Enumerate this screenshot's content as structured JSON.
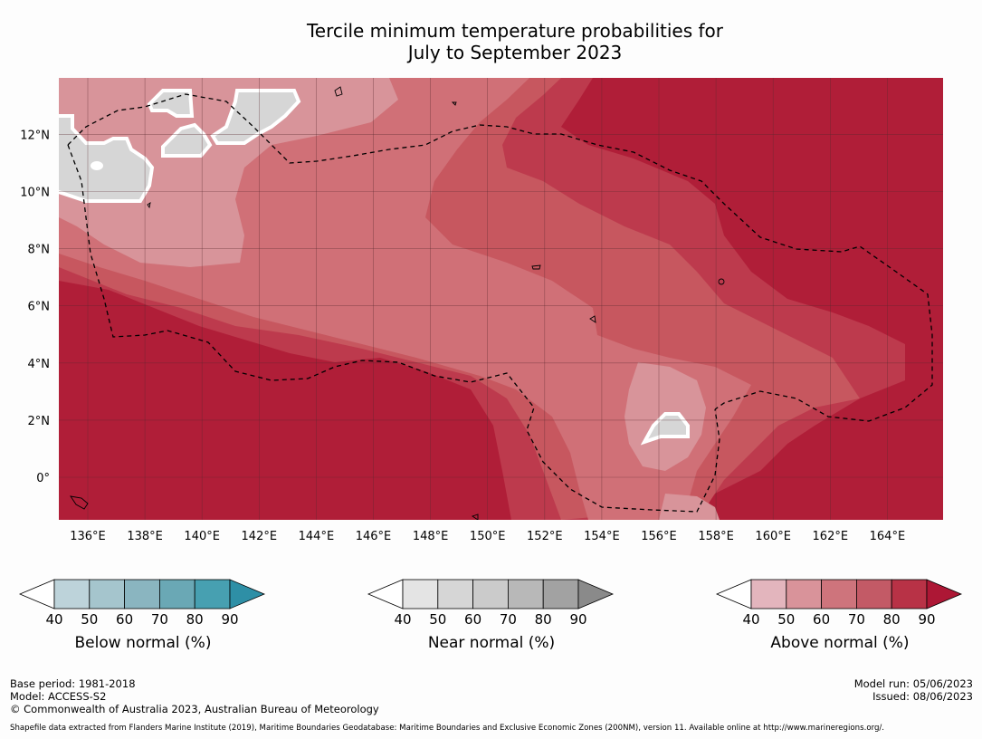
{
  "title": {
    "line1": "Tercile minimum temperature probabilities for",
    "line2": "July to September 2023"
  },
  "map": {
    "lon_labels": [
      "136°E",
      "138°E",
      "140°E",
      "142°E",
      "144°E",
      "146°E",
      "148°E",
      "150°E",
      "152°E",
      "154°E",
      "156°E",
      "158°E",
      "160°E",
      "162°E",
      "164°E"
    ],
    "lat_labels": [
      "12°N",
      "10°N",
      "8°N",
      "6°N",
      "4°N",
      "2°N",
      "0°"
    ],
    "colors": {
      "above_90": "#b01e38",
      "above_80": "#bd3a4d",
      "above_70": "#c7575f",
      "above_60": "#d07077",
      "above_50": "#d8949a",
      "near": "#d6d6d6",
      "grid": "#5a2a30"
    }
  },
  "colorbars": [
    {
      "name": "below",
      "label": "Below normal (%)",
      "ticks": [
        "40",
        "50",
        "60",
        "70",
        "80",
        "90"
      ],
      "colors": [
        "#ffffff",
        "#bdd3da",
        "#a5c5cd",
        "#8ab5c0",
        "#6aa8b5",
        "#47a0b1",
        "#2e8fa6"
      ]
    },
    {
      "name": "near",
      "label": "Near normal (%)",
      "ticks": [
        "40",
        "50",
        "60",
        "70",
        "80",
        "90"
      ],
      "colors": [
        "#ffffff",
        "#e4e4e4",
        "#d6d6d6",
        "#cbcbcb",
        "#b8b8b8",
        "#a2a2a2",
        "#8a8a8a"
      ]
    },
    {
      "name": "above",
      "label": "Above normal (%)",
      "ticks": [
        "40",
        "50",
        "60",
        "70",
        "80",
        "90"
      ],
      "colors": [
        "#ffffff",
        "#e3b5bd",
        "#d9939a",
        "#ce747c",
        "#c35a66",
        "#b83246",
        "#ad1735"
      ]
    }
  ],
  "footer": {
    "base_period": "Base period: 1981-2018",
    "model": "Model: ACCESS-S2",
    "copyright": "© Commonwealth of Australia 2023, Australian Bureau of Meteorology",
    "model_run": "Model run: 05/06/2023",
    "issued": "Issued: 08/06/2023",
    "shapefile": "Shapefile data extracted from Flanders Marine Institute (2019), Maritime Boundaries Geodatabase: Maritime Boundaries and Exclusive Economic Zones (200NM), version 11. Available online at http://www.marineregions.org/."
  }
}
